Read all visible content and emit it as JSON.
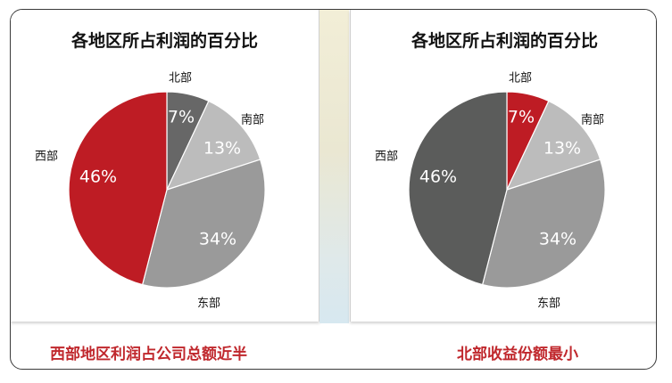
{
  "chart_data": [
    {
      "type": "pie",
      "title": "各地区所占利润的百分比",
      "slices": [
        {
          "label": "北部",
          "value": 7,
          "value_label": "7%",
          "color": "#676767"
        },
        {
          "label": "南部",
          "value": 13,
          "value_label": "13%",
          "color": "#bcbcbc"
        },
        {
          "label": "东部",
          "value": 34,
          "value_label": "34%",
          "color": "#9a9a9a"
        },
        {
          "label": "西部",
          "value": 46,
          "value_label": "46%",
          "color": "#be1c24"
        }
      ],
      "start": "12 o'clock",
      "direction": "clockwise"
    },
    {
      "type": "pie",
      "title": "各地区所占利润的百分比",
      "slices": [
        {
          "label": "北部",
          "value": 7,
          "value_label": "7%",
          "color": "#be1c24"
        },
        {
          "label": "南部",
          "value": 13,
          "value_label": "13%",
          "color": "#bcbcbc"
        },
        {
          "label": "东部",
          "value": 34,
          "value_label": "34%",
          "color": "#9a9a9a"
        },
        {
          "label": "西部",
          "value": 46,
          "value_label": "46%",
          "color": "#5b5c5b"
        }
      ],
      "start": "12 o'clock",
      "direction": "clockwise"
    }
  ],
  "captions": {
    "left": "西部地区利润占公司总额近半",
    "right": "北部收益份额最小"
  }
}
